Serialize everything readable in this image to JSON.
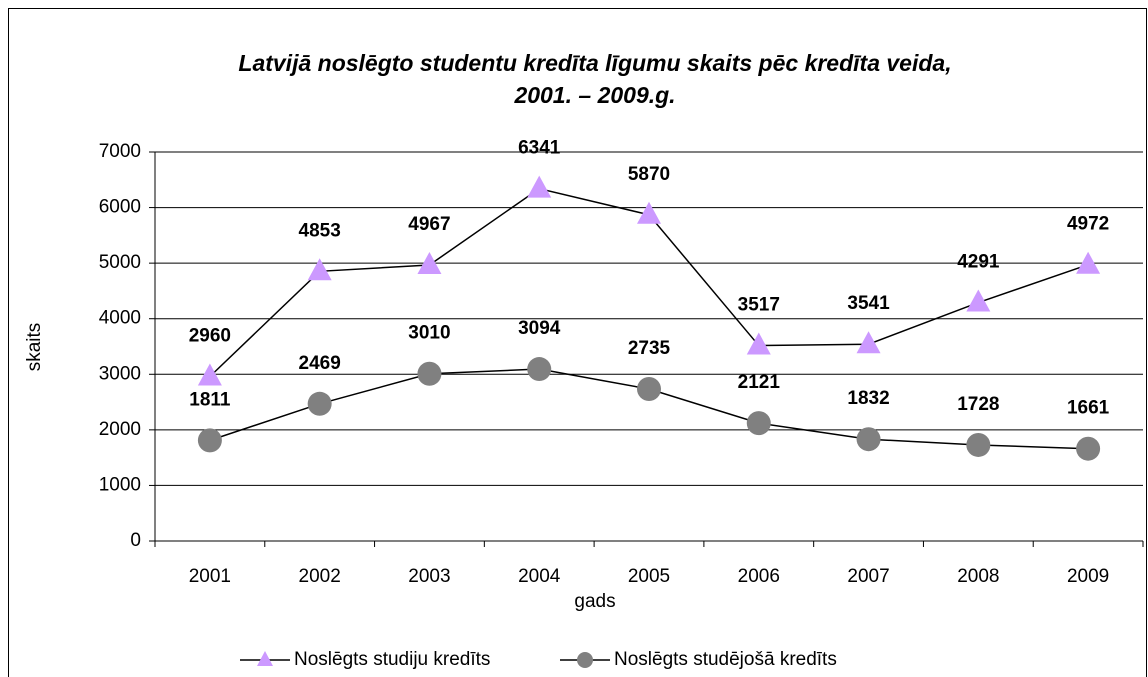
{
  "chart_data": {
    "type": "line",
    "title": [
      "Latvijā noslēgto studentu kredīta līgumu skaits pēc kredīta veida,",
      "2001. – 2009.g."
    ],
    "x_label": "gads",
    "y_label": "skaits",
    "categories": [
      "2001",
      "2002",
      "2003",
      "2004",
      "2005",
      "2006",
      "2007",
      "2008",
      "2009"
    ],
    "series": [
      {
        "name": "Noslēgts studiju kredīts",
        "color": "#cc99ff",
        "marker": "triangle",
        "values": [
          2960,
          4853,
          4967,
          6341,
          5870,
          3517,
          3541,
          4291,
          4972
        ]
      },
      {
        "name": "Noslēgts studējošā kredīts",
        "color": "#808080",
        "marker": "circle",
        "values": [
          1811,
          2469,
          3010,
          3094,
          2735,
          2121,
          1832,
          1728,
          1661
        ]
      }
    ],
    "ylim": [
      0,
      7000
    ],
    "yticks": [
      0,
      1000,
      2000,
      3000,
      4000,
      5000,
      6000,
      7000
    ],
    "grid": true,
    "legend": "bottom"
  }
}
